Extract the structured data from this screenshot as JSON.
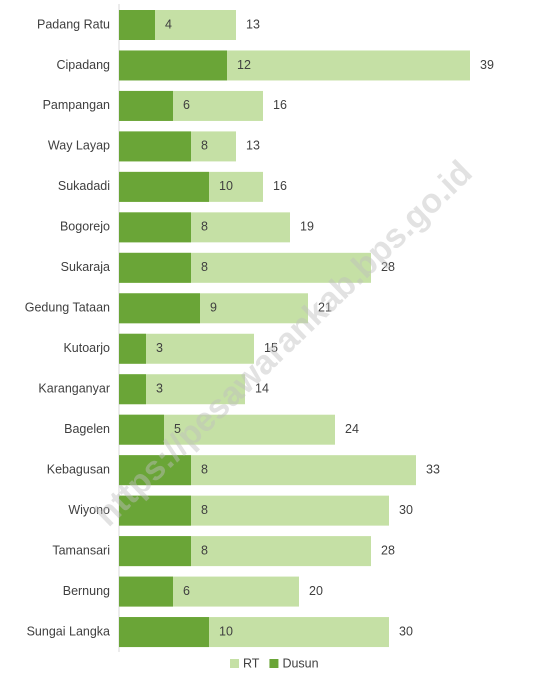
{
  "chart_data": {
    "type": "bar",
    "orientation": "horizontal",
    "overlap": true,
    "categories": [
      "Padang Ratu",
      "Cipadang",
      "Pampangan",
      "Way Layap",
      "Sukadadi",
      "Bogorejo",
      "Sukaraja",
      "Gedung Tataan",
      "Kutoarjo",
      "Karanganyar",
      "Bagelen",
      "Kebagusan",
      "Wiyono",
      "Tamansari",
      "Bernung",
      "Sungai Langka"
    ],
    "series": [
      {
        "name": "RT",
        "color": "#c5e0a5",
        "values": [
          13,
          39,
          16,
          13,
          16,
          19,
          28,
          21,
          15,
          14,
          24,
          33,
          30,
          28,
          20,
          30
        ]
      },
      {
        "name": "Dusun",
        "color": "#6aa537",
        "values": [
          4,
          12,
          6,
          8,
          10,
          8,
          8,
          9,
          3,
          3,
          5,
          8,
          8,
          8,
          6,
          10
        ]
      }
    ],
    "xlim": [
      0,
      45
    ],
    "legend": "bottom",
    "watermark": "https://pesawarankab.bps.go.id"
  }
}
